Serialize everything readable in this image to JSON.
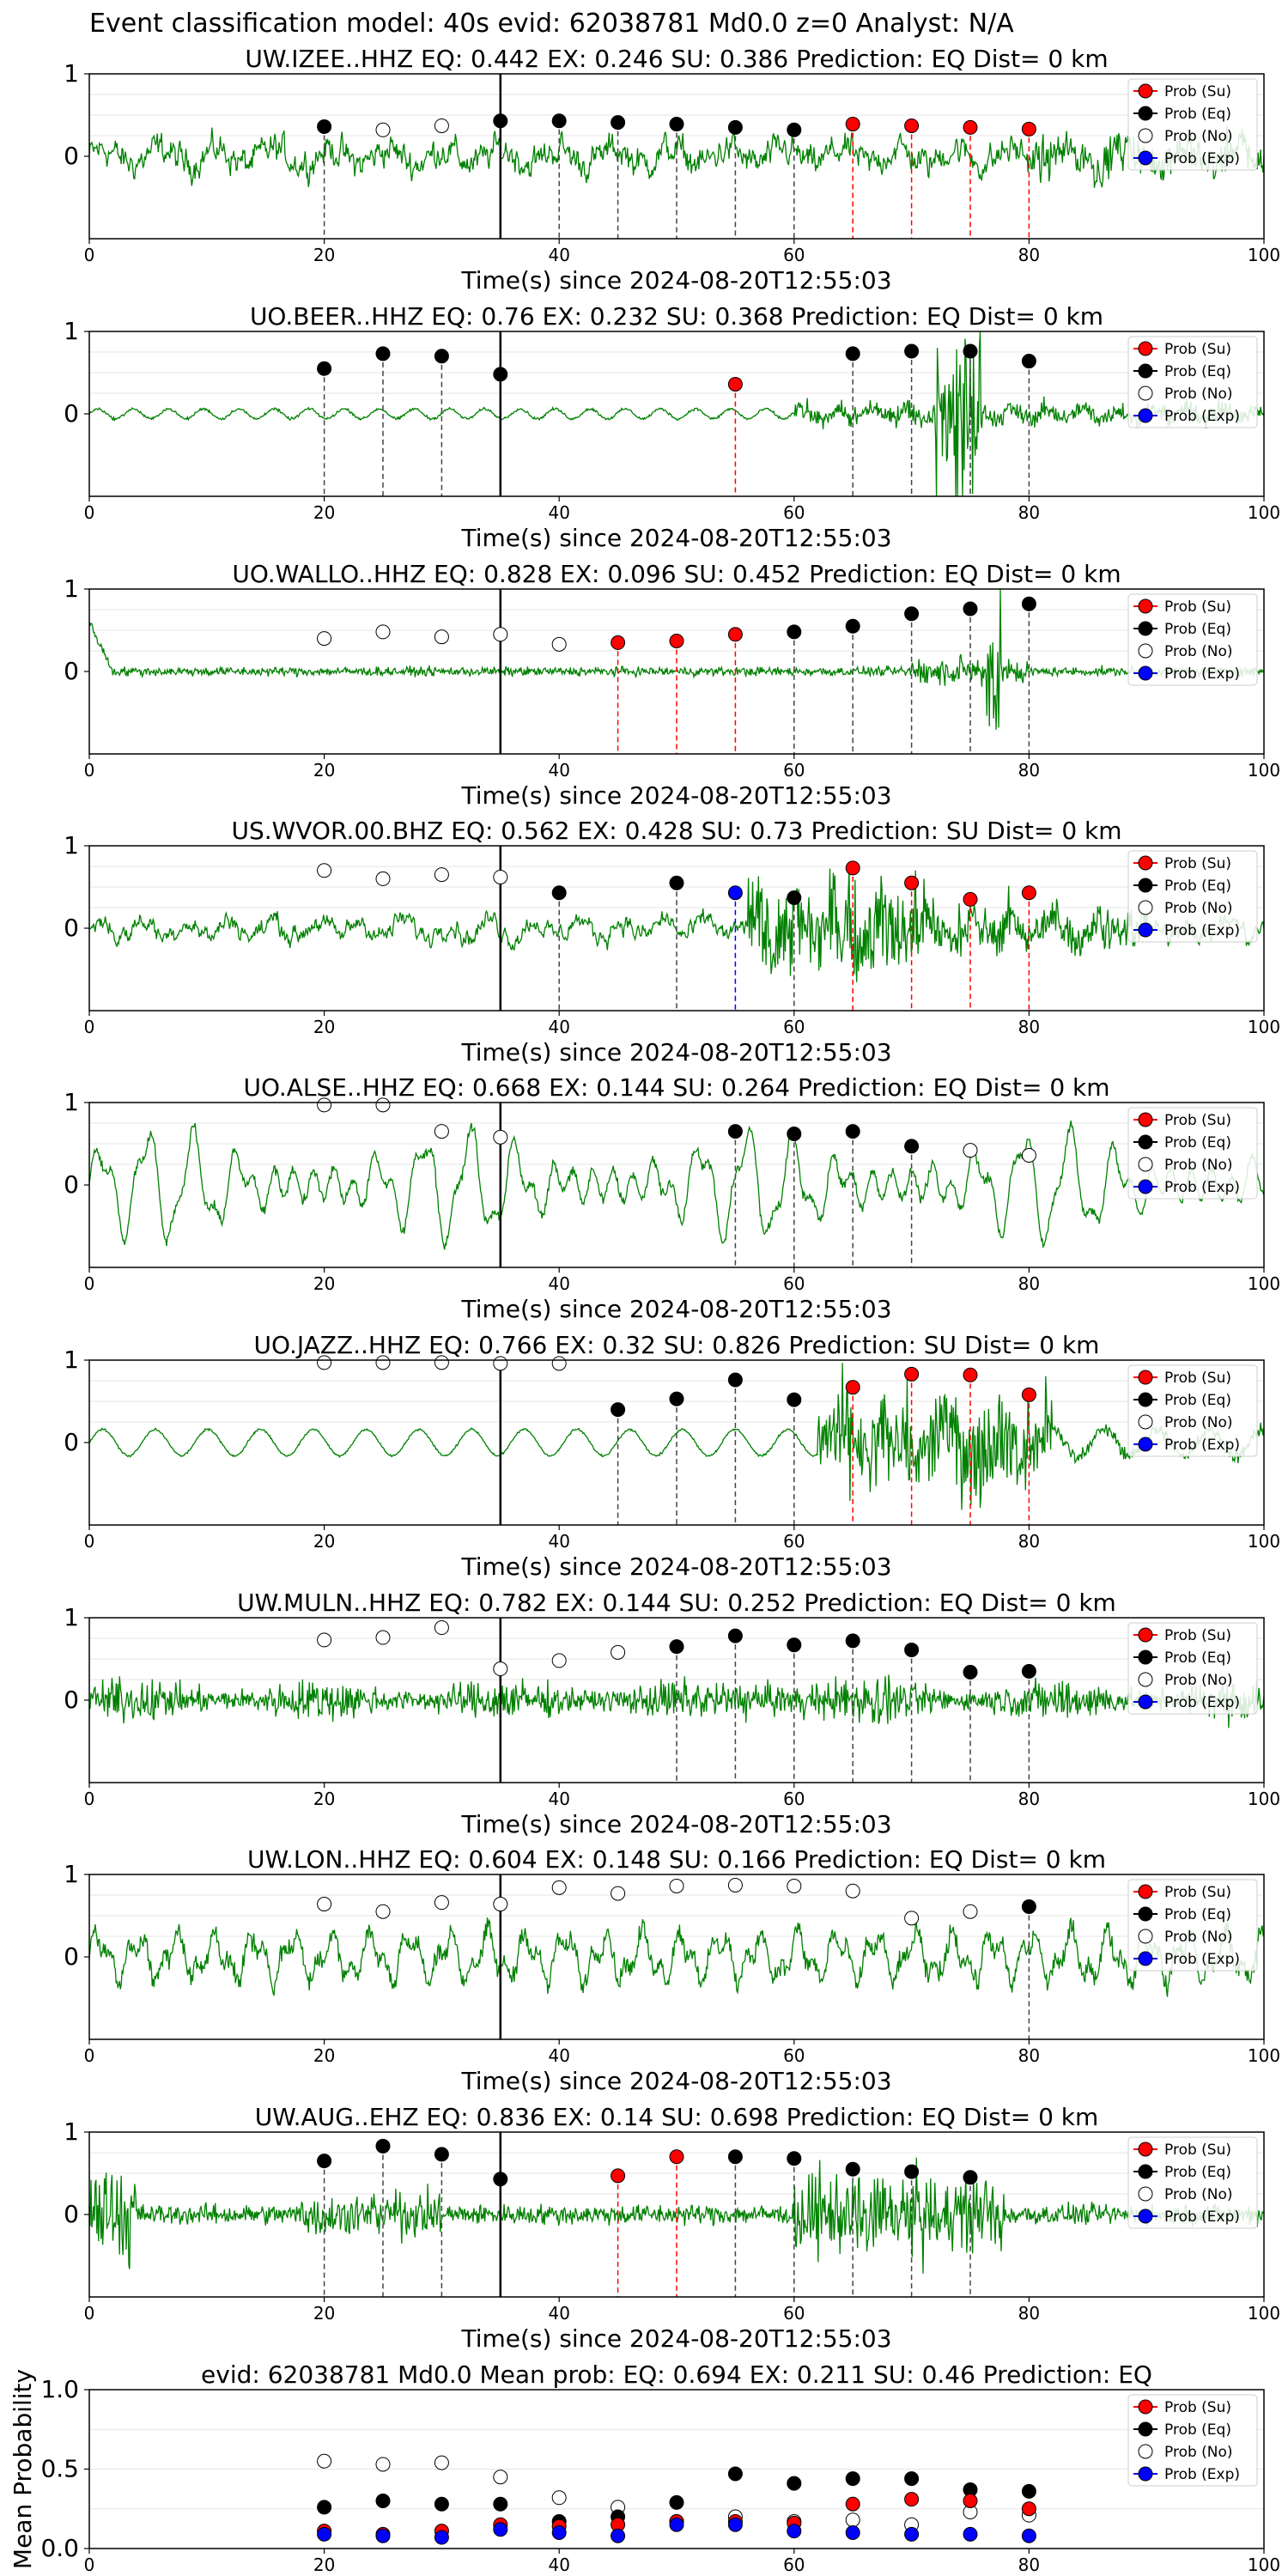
{
  "figure": {
    "title": "Event classification model: 40s evid: 62038781 Md0.0 z=0 Analyst: N/A"
  },
  "legend": [
    "Prob (Su)",
    "Prob (Eq)",
    "Prob (No)",
    "Prob (Exp)"
  ],
  "colors": {
    "waveform": "#008000",
    "su": "#ff0000",
    "eq": "#000000",
    "no": "#ffffff",
    "exp": "#0000ff",
    "ref_line": "#000000"
  },
  "chart_data": [
    {
      "type": "line",
      "title": "UW.IZEE..HHZ   EQ: 0.442  EX: 0.246  SU: 0.386   Prediction: EQ    Dist= 0 km",
      "xlabel": "Time(s) since 2024-08-20T12:55:03",
      "xlim": [
        0,
        100
      ],
      "ylim": [
        -1,
        1
      ],
      "xticks": [
        "0",
        "20",
        "40",
        "60",
        "80",
        "100"
      ],
      "yticks": [
        "0",
        "1"
      ],
      "ref_x": 35,
      "signal": {
        "style": "noise",
        "amp": 0.3
      },
      "markers": [
        {
          "x": 20,
          "y": 0.36,
          "cls": "eq"
        },
        {
          "x": 25,
          "y": 0.32,
          "cls": "no"
        },
        {
          "x": 30,
          "y": 0.37,
          "cls": "no"
        },
        {
          "x": 35,
          "y": 0.43,
          "cls": "eq"
        },
        {
          "x": 40,
          "y": 0.43,
          "cls": "eq"
        },
        {
          "x": 45,
          "y": 0.41,
          "cls": "eq"
        },
        {
          "x": 50,
          "y": 0.39,
          "cls": "eq"
        },
        {
          "x": 55,
          "y": 0.35,
          "cls": "eq"
        },
        {
          "x": 60,
          "y": 0.32,
          "cls": "eq"
        },
        {
          "x": 65,
          "y": 0.39,
          "cls": "su"
        },
        {
          "x": 70,
          "y": 0.37,
          "cls": "su"
        },
        {
          "x": 75,
          "y": 0.35,
          "cls": "su"
        },
        {
          "x": 80,
          "y": 0.33,
          "cls": "su"
        }
      ]
    },
    {
      "type": "line",
      "title": "UO.BEER..HHZ   EQ: 0.76  EX: 0.232  SU: 0.368   Prediction: EQ    Dist= 0 km",
      "xlabel": "Time(s) since 2024-08-20T12:55:03",
      "xlim": [
        0,
        100
      ],
      "ylim": [
        -1,
        1
      ],
      "xticks": [
        "0",
        "20",
        "40",
        "60",
        "80",
        "100"
      ],
      "yticks": [
        "0",
        "1"
      ],
      "ref_x": 35,
      "signal": {
        "style": "quiet",
        "amp": 0.12
      },
      "markers": [
        {
          "x": 20,
          "y": 0.55,
          "cls": "eq"
        },
        {
          "x": 25,
          "y": 0.73,
          "cls": "eq"
        },
        {
          "x": 30,
          "y": 0.7,
          "cls": "eq"
        },
        {
          "x": 35,
          "y": 0.48,
          "cls": "eq"
        },
        {
          "x": 55,
          "y": 0.36,
          "cls": "su"
        },
        {
          "x": 65,
          "y": 0.73,
          "cls": "eq"
        },
        {
          "x": 70,
          "y": 0.76,
          "cls": "eq"
        },
        {
          "x": 75,
          "y": 0.76,
          "cls": "eq"
        },
        {
          "x": 80,
          "y": 0.64,
          "cls": "eq"
        }
      ]
    },
    {
      "type": "line",
      "title": "UO.WALLO..HHZ   EQ: 0.828  EX: 0.096  SU: 0.452   Prediction: EQ    Dist= 0 km",
      "xlabel": "Time(s) since 2024-08-20T12:55:03",
      "xlim": [
        0,
        100
      ],
      "ylim": [
        -1,
        1
      ],
      "xticks": [
        "0",
        "20",
        "40",
        "60",
        "80",
        "100"
      ],
      "yticks": [
        "0",
        "1"
      ],
      "ref_x": 35,
      "signal": {
        "style": "low",
        "amp": 0.08
      },
      "markers": [
        {
          "x": 20,
          "y": 0.4,
          "cls": "no"
        },
        {
          "x": 25,
          "y": 0.48,
          "cls": "no"
        },
        {
          "x": 30,
          "y": 0.42,
          "cls": "no"
        },
        {
          "x": 35,
          "y": 0.45,
          "cls": "no"
        },
        {
          "x": 40,
          "y": 0.33,
          "cls": "no"
        },
        {
          "x": 45,
          "y": 0.35,
          "cls": "su"
        },
        {
          "x": 50,
          "y": 0.37,
          "cls": "su"
        },
        {
          "x": 55,
          "y": 0.45,
          "cls": "su"
        },
        {
          "x": 60,
          "y": 0.48,
          "cls": "eq"
        },
        {
          "x": 65,
          "y": 0.55,
          "cls": "eq"
        },
        {
          "x": 70,
          "y": 0.7,
          "cls": "eq"
        },
        {
          "x": 75,
          "y": 0.76,
          "cls": "eq"
        },
        {
          "x": 80,
          "y": 0.82,
          "cls": "eq"
        }
      ]
    },
    {
      "type": "line",
      "title": "US.WVOR.00.BHZ   EQ: 0.562  EX: 0.428  SU: 0.73   Prediction: SU    Dist= 0 km",
      "xlabel": "Time(s) since 2024-08-20T12:55:03",
      "xlim": [
        0,
        100
      ],
      "ylim": [
        -1,
        1
      ],
      "xticks": [
        "0",
        "20",
        "40",
        "60",
        "80",
        "100"
      ],
      "yticks": [
        "0",
        "1"
      ],
      "ref_x": 35,
      "signal": {
        "style": "burst",
        "amp": 0.25,
        "burst_start": 56,
        "burst_end": 72,
        "burst_amp": 0.9
      },
      "markers": [
        {
          "x": 20,
          "y": 0.7,
          "cls": "no"
        },
        {
          "x": 25,
          "y": 0.6,
          "cls": "no"
        },
        {
          "x": 30,
          "y": 0.65,
          "cls": "no"
        },
        {
          "x": 35,
          "y": 0.62,
          "cls": "no"
        },
        {
          "x": 40,
          "y": 0.43,
          "cls": "eq"
        },
        {
          "x": 50,
          "y": 0.55,
          "cls": "eq"
        },
        {
          "x": 55,
          "y": 0.43,
          "cls": "exp"
        },
        {
          "x": 60,
          "y": 0.37,
          "cls": "eq"
        },
        {
          "x": 65,
          "y": 0.73,
          "cls": "su"
        },
        {
          "x": 70,
          "y": 0.55,
          "cls": "su"
        },
        {
          "x": 75,
          "y": 0.35,
          "cls": "su"
        },
        {
          "x": 80,
          "y": 0.43,
          "cls": "su"
        }
      ]
    },
    {
      "type": "line",
      "title": "UO.ALSE..HHZ   EQ: 0.668  EX: 0.144  SU: 0.264   Prediction: EQ    Dist= 0 km",
      "xlabel": "Time(s) since 2024-08-20T12:55:03",
      "xlim": [
        0,
        100
      ],
      "ylim": [
        -1,
        1
      ],
      "xticks": [
        "0",
        "20",
        "40",
        "60",
        "80",
        "100"
      ],
      "yticks": [
        "0",
        "1"
      ],
      "ref_x": 35,
      "signal": {
        "style": "wave",
        "amp": 0.6
      },
      "markers": [
        {
          "x": 20,
          "y": 0.97,
          "cls": "no"
        },
        {
          "x": 25,
          "y": 0.97,
          "cls": "no"
        },
        {
          "x": 30,
          "y": 0.65,
          "cls": "no"
        },
        {
          "x": 35,
          "y": 0.58,
          "cls": "no"
        },
        {
          "x": 55,
          "y": 0.65,
          "cls": "eq"
        },
        {
          "x": 60,
          "y": 0.62,
          "cls": "eq"
        },
        {
          "x": 65,
          "y": 0.65,
          "cls": "eq"
        },
        {
          "x": 70,
          "y": 0.47,
          "cls": "eq"
        },
        {
          "x": 75,
          "y": 0.42,
          "cls": "no"
        },
        {
          "x": 80,
          "y": 0.36,
          "cls": "no"
        }
      ]
    },
    {
      "type": "line",
      "title": "UO.JAZZ..HHZ   EQ: 0.766  EX: 0.32  SU: 0.826   Prediction: SU    Dist= 0 km",
      "xlabel": "Time(s) since 2024-08-20T12:55:03",
      "xlim": [
        0,
        100
      ],
      "ylim": [
        -1,
        1
      ],
      "xticks": [
        "0",
        "20",
        "40",
        "60",
        "80",
        "100"
      ],
      "yticks": [
        "0",
        "1"
      ],
      "ref_x": 35,
      "signal": {
        "style": "waveburst",
        "amp": 0.2,
        "burst_start": 62,
        "burst_end": 82,
        "burst_amp": 0.85
      },
      "markers": [
        {
          "x": 20,
          "y": 0.97,
          "cls": "no"
        },
        {
          "x": 25,
          "y": 0.97,
          "cls": "no"
        },
        {
          "x": 30,
          "y": 0.97,
          "cls": "no"
        },
        {
          "x": 35,
          "y": 0.96,
          "cls": "no"
        },
        {
          "x": 40,
          "y": 0.96,
          "cls": "no"
        },
        {
          "x": 45,
          "y": 0.4,
          "cls": "eq"
        },
        {
          "x": 50,
          "y": 0.53,
          "cls": "eq"
        },
        {
          "x": 55,
          "y": 0.76,
          "cls": "eq"
        },
        {
          "x": 60,
          "y": 0.52,
          "cls": "eq"
        },
        {
          "x": 65,
          "y": 0.67,
          "cls": "su"
        },
        {
          "x": 70,
          "y": 0.83,
          "cls": "su"
        },
        {
          "x": 75,
          "y": 0.82,
          "cls": "su"
        },
        {
          "x": 80,
          "y": 0.58,
          "cls": "su"
        }
      ]
    },
    {
      "type": "line",
      "title": "UW.MULN..HHZ   EQ: 0.782  EX: 0.144  SU: 0.252   Prediction: EQ    Dist= 0 km",
      "xlabel": "Time(s) since 2024-08-20T12:55:03",
      "xlim": [
        0,
        100
      ],
      "ylim": [
        -1,
        1
      ],
      "xticks": [
        "0",
        "20",
        "40",
        "60",
        "80",
        "100"
      ],
      "yticks": [
        "0",
        "1"
      ],
      "ref_x": 35,
      "signal": {
        "style": "dense",
        "amp": 0.35
      },
      "markers": [
        {
          "x": 20,
          "y": 0.73,
          "cls": "no"
        },
        {
          "x": 25,
          "y": 0.76,
          "cls": "no"
        },
        {
          "x": 30,
          "y": 0.88,
          "cls": "no"
        },
        {
          "x": 35,
          "y": 0.38,
          "cls": "no"
        },
        {
          "x": 40,
          "y": 0.48,
          "cls": "no"
        },
        {
          "x": 45,
          "y": 0.58,
          "cls": "no"
        },
        {
          "x": 50,
          "y": 0.65,
          "cls": "eq"
        },
        {
          "x": 55,
          "y": 0.78,
          "cls": "eq"
        },
        {
          "x": 60,
          "y": 0.67,
          "cls": "eq"
        },
        {
          "x": 65,
          "y": 0.72,
          "cls": "eq"
        },
        {
          "x": 70,
          "y": 0.61,
          "cls": "eq"
        },
        {
          "x": 75,
          "y": 0.34,
          "cls": "eq"
        },
        {
          "x": 80,
          "y": 0.35,
          "cls": "eq"
        }
      ]
    },
    {
      "type": "line",
      "title": "UW.LON..HHZ   EQ: 0.604  EX: 0.148  SU: 0.166   Prediction: EQ    Dist= 0 km",
      "xlabel": "Time(s) since 2024-08-20T12:55:03",
      "xlim": [
        0,
        100
      ],
      "ylim": [
        -1,
        1
      ],
      "xticks": [
        "0",
        "20",
        "40",
        "60",
        "80",
        "100"
      ],
      "yticks": [
        "0",
        "1"
      ],
      "ref_x": 35,
      "signal": {
        "style": "wavenoise",
        "amp": 0.45
      },
      "markers": [
        {
          "x": 20,
          "y": 0.64,
          "cls": "no"
        },
        {
          "x": 25,
          "y": 0.55,
          "cls": "no"
        },
        {
          "x": 30,
          "y": 0.66,
          "cls": "no"
        },
        {
          "x": 35,
          "y": 0.64,
          "cls": "no"
        },
        {
          "x": 40,
          "y": 0.84,
          "cls": "no"
        },
        {
          "x": 45,
          "y": 0.77,
          "cls": "no"
        },
        {
          "x": 50,
          "y": 0.86,
          "cls": "no"
        },
        {
          "x": 55,
          "y": 0.87,
          "cls": "no"
        },
        {
          "x": 60,
          "y": 0.86,
          "cls": "no"
        },
        {
          "x": 65,
          "y": 0.8,
          "cls": "no"
        },
        {
          "x": 70,
          "y": 0.47,
          "cls": "no"
        },
        {
          "x": 75,
          "y": 0.55,
          "cls": "no"
        },
        {
          "x": 80,
          "y": 0.61,
          "cls": "eq"
        }
      ]
    },
    {
      "type": "line",
      "title": "UW.AUG..EHZ   EQ: 0.836  EX: 0.14  SU: 0.698   Prediction: EQ    Dist= 0 km",
      "xlabel": "Time(s) since 2024-08-20T12:55:03",
      "xlim": [
        0,
        100
      ],
      "ylim": [
        -1,
        1
      ],
      "xticks": [
        "0",
        "20",
        "40",
        "60",
        "80",
        "100"
      ],
      "yticks": [
        "0",
        "1"
      ],
      "ref_x": 35,
      "signal": {
        "style": "spiky",
        "amp": 0.3
      },
      "markers": [
        {
          "x": 20,
          "y": 0.65,
          "cls": "eq"
        },
        {
          "x": 25,
          "y": 0.83,
          "cls": "eq"
        },
        {
          "x": 30,
          "y": 0.73,
          "cls": "eq"
        },
        {
          "x": 35,
          "y": 0.43,
          "cls": "eq"
        },
        {
          "x": 45,
          "y": 0.47,
          "cls": "su"
        },
        {
          "x": 50,
          "y": 0.7,
          "cls": "su"
        },
        {
          "x": 55,
          "y": 0.7,
          "cls": "eq"
        },
        {
          "x": 60,
          "y": 0.68,
          "cls": "eq"
        },
        {
          "x": 65,
          "y": 0.55,
          "cls": "eq"
        },
        {
          "x": 70,
          "y": 0.52,
          "cls": "eq"
        },
        {
          "x": 75,
          "y": 0.45,
          "cls": "eq"
        }
      ]
    },
    {
      "type": "scatter",
      "title": "evid: 62038781   Md0.0    Mean prob:   EQ: 0.694  EX: 0.211  SU: 0.46   Prediction: EQ",
      "ylabel": "Mean Probability",
      "xlim": [
        0,
        100
      ],
      "ylim": [
        0,
        1
      ],
      "xticks": [
        "0",
        "20",
        "40",
        "60",
        "80",
        "100"
      ],
      "yticks": [
        "0.0",
        "0.5",
        "1.0"
      ],
      "x": [
        20,
        25,
        30,
        35,
        40,
        45,
        50,
        55,
        60,
        65,
        70,
        75,
        80
      ],
      "series": [
        {
          "cls": "no",
          "values": [
            0.55,
            0.53,
            0.54,
            0.45,
            0.32,
            0.26,
            0.17,
            0.2,
            0.17,
            0.18,
            0.15,
            0.23,
            0.21
          ]
        },
        {
          "cls": "eq",
          "values": [
            0.26,
            0.3,
            0.28,
            0.28,
            0.17,
            0.2,
            0.29,
            0.47,
            0.41,
            0.44,
            0.44,
            0.37,
            0.36
          ]
        },
        {
          "cls": "su",
          "values": [
            0.11,
            0.09,
            0.11,
            0.15,
            0.14,
            0.15,
            0.17,
            0.17,
            0.16,
            0.28,
            0.31,
            0.3,
            0.25
          ]
        },
        {
          "cls": "exp",
          "values": [
            0.09,
            0.08,
            0.07,
            0.12,
            0.1,
            0.08,
            0.15,
            0.15,
            0.11,
            0.1,
            0.09,
            0.09,
            0.08
          ]
        }
      ]
    }
  ]
}
